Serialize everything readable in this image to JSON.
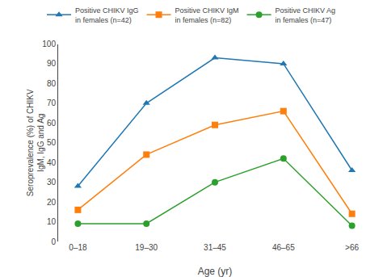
{
  "chart_data": {
    "type": "line",
    "xlabel": "Age (yr)",
    "ylabel": "Seroprevalence (%) of CHIKV\nIgM, IgG and Ag",
    "categories": [
      "0–18",
      "19–30",
      "31–45",
      "46–65",
      ">66"
    ],
    "series": [
      {
        "name": "Positive CHIKV IgG\nin females (n=42)",
        "marker": "triangle-up",
        "values": [
          28,
          70,
          93,
          90,
          36
        ]
      },
      {
        "name": "Positive CHIKV IgM\nin females (n=82)",
        "marker": "square",
        "values": [
          16,
          44,
          59,
          66,
          14
        ]
      },
      {
        "name": "Positive CHIKV Ag\nin females (n=47)",
        "marker": "circle",
        "values": [
          9,
          9,
          30,
          42,
          8
        ]
      }
    ],
    "ylim": [
      0,
      100
    ],
    "yticks": [
      0,
      10,
      20,
      30,
      40,
      50,
      60,
      70,
      80,
      90,
      100
    ],
    "grid": false,
    "legend": "top"
  }
}
